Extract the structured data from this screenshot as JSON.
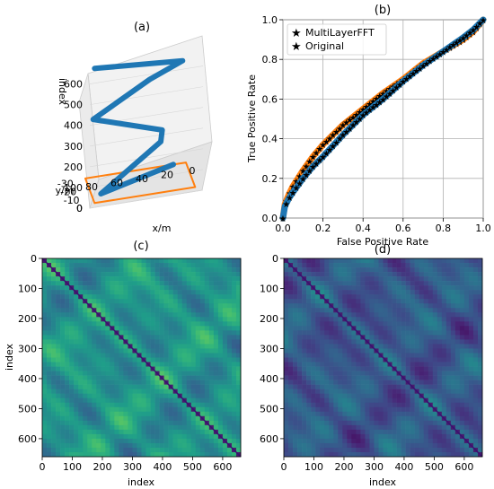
{
  "colors": {
    "blue": "#1f77b4",
    "orange": "#ff7f0e"
  },
  "panel_a": {
    "title": "(a)",
    "xlabel": "x/m",
    "ylabel": "y/m",
    "zlabel": "index",
    "x_ticks": [
      "80",
      "60",
      "40",
      "20",
      "0"
    ],
    "y_ticks": [
      "-30",
      "-20",
      "-10",
      "0"
    ],
    "z_ticks": [
      "0",
      "100",
      "200",
      "300",
      "400",
      "500",
      "600"
    ]
  },
  "panel_c": {
    "title": "(c)",
    "xlabel": "index",
    "ylabel": "index",
    "x_ticks": [
      "0",
      "100",
      "200",
      "300",
      "400",
      "500",
      "600"
    ],
    "y_ticks": [
      "0",
      "100",
      "200",
      "300",
      "400",
      "500",
      "600"
    ]
  },
  "panel_d": {
    "title": "(d)",
    "xlabel": "index",
    "x_ticks": [
      "0",
      "100",
      "200",
      "300",
      "400",
      "500",
      "600"
    ],
    "y_ticks": [
      "0",
      "100",
      "200",
      "300",
      "400",
      "500",
      "600"
    ]
  },
  "chart_data": [
    {
      "type": "scatter",
      "panel": "a",
      "title": "(a)",
      "xlabel": "x/m",
      "ylabel": "y/m",
      "zlabel": "index",
      "xlim": [
        90,
        0
      ],
      "ylim": [
        -35,
        0
      ],
      "zlim": [
        0,
        650
      ],
      "series": [
        {
          "color": "#1f77b4",
          "points": [
            [
              85,
              -5,
              650
            ],
            [
              15,
              -5,
              620
            ],
            [
              35,
              -30,
              450
            ],
            [
              80,
              -30,
              300
            ],
            [
              30,
              -10,
              280
            ],
            [
              25,
              -35,
              120
            ],
            [
              80,
              -5,
              40
            ],
            [
              15,
              -35,
              0
            ]
          ]
        },
        {
          "color": "#ff7f0e",
          "points": [
            [
              85,
              -5,
              0
            ],
            [
              5,
              -5,
              0
            ],
            [
              5,
              -35,
              0
            ],
            [
              85,
              -35,
              0
            ],
            [
              85,
              -5,
              0
            ]
          ]
        }
      ]
    },
    {
      "type": "scatter",
      "panel": "b",
      "title": "(b)",
      "xlabel": "False Positive Rate",
      "ylabel": "True Positive Rate",
      "xlim": [
        0,
        1
      ],
      "ylim": [
        0,
        1
      ],
      "grid": true,
      "legend": "top-left",
      "x_ticks": [
        "0.0",
        "0.2",
        "0.4",
        "0.6",
        "0.8",
        "1.0"
      ],
      "y_ticks": [
        "0.0",
        "0.2",
        "0.4",
        "0.6",
        "0.8",
        "1.0"
      ],
      "series": [
        {
          "name": "MultiLayerFFT",
          "color": "#1f77b4",
          "x": [
            0.0,
            0.01,
            0.03,
            0.05,
            0.1,
            0.15,
            0.2,
            0.3,
            0.4,
            0.5,
            0.6,
            0.7,
            0.8,
            0.9,
            0.95,
            1.0
          ],
          "y": [
            0.0,
            0.06,
            0.1,
            0.13,
            0.2,
            0.26,
            0.31,
            0.42,
            0.52,
            0.6,
            0.69,
            0.77,
            0.84,
            0.91,
            0.95,
            1.0
          ]
        },
        {
          "name": "Original",
          "color": "#ff7f0e",
          "x": [
            0.0,
            0.01,
            0.03,
            0.05,
            0.1,
            0.15,
            0.2,
            0.3,
            0.4,
            0.5,
            0.6,
            0.7,
            0.8,
            0.9,
            0.95,
            1.0
          ],
          "y": [
            0.0,
            0.07,
            0.12,
            0.16,
            0.24,
            0.31,
            0.37,
            0.47,
            0.55,
            0.63,
            0.7,
            0.78,
            0.84,
            0.9,
            0.94,
            1.0
          ]
        }
      ]
    },
    {
      "type": "heatmap",
      "panel": "c",
      "title": "(c)",
      "xlabel": "index",
      "ylabel": "index",
      "xlim": [
        0,
        660
      ],
      "ylim": [
        660,
        0
      ],
      "colormap": "viridis"
    },
    {
      "type": "heatmap",
      "panel": "d",
      "title": "(d)",
      "xlabel": "index",
      "xlim": [
        0,
        660
      ],
      "ylim": [
        660,
        0
      ],
      "colormap": "viridis"
    }
  ]
}
